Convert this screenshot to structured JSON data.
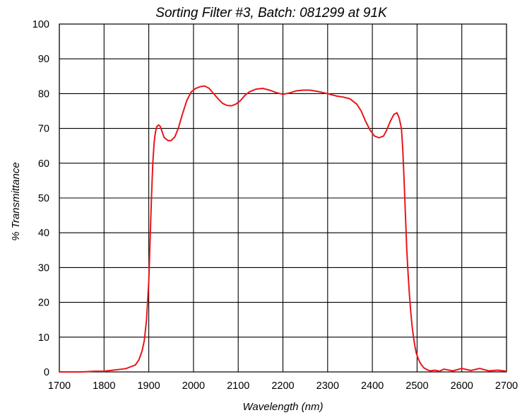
{
  "chart_data": {
    "type": "line",
    "title": "Sorting Filter #3, Batch: 081299  at 91K",
    "xlabel": "Wavelength (nm)",
    "ylabel": "% Transmittance",
    "xlim": [
      1700,
      2700
    ],
    "ylim": [
      0,
      100
    ],
    "x_ticks": [
      "1700",
      "1800",
      "1900",
      "2000",
      "2100",
      "2200",
      "2300",
      "2400",
      "2500",
      "2600",
      "2700"
    ],
    "y_ticks": [
      "0",
      "10",
      "20",
      "30",
      "40",
      "50",
      "60",
      "70",
      "80",
      "90",
      "100"
    ],
    "grid": true,
    "line_color": "#e8161b",
    "series": [
      {
        "x": [
          1700,
          1750,
          1780,
          1800,
          1820,
          1840,
          1850,
          1860,
          1870,
          1878,
          1885,
          1890,
          1895,
          1900,
          1903,
          1906,
          1909,
          1912,
          1915,
          1918,
          1922,
          1926,
          1930,
          1934,
          1938,
          1943,
          1950,
          1958,
          1966,
          1975,
          1985,
          1995,
          2005,
          2015,
          2025,
          2035,
          2045,
          2055,
          2065,
          2075,
          2085,
          2095,
          2105,
          2115,
          2125,
          2140,
          2155,
          2170,
          2185,
          2200,
          2215,
          2230,
          2245,
          2260,
          2275,
          2290,
          2305,
          2320,
          2335,
          2350,
          2365,
          2375,
          2385,
          2395,
          2405,
          2415,
          2425,
          2432,
          2440,
          2448,
          2455,
          2460,
          2465,
          2468,
          2471,
          2474,
          2477,
          2480,
          2483,
          2486,
          2489,
          2492,
          2495,
          2498,
          2502,
          2506,
          2510,
          2515,
          2520,
          2525,
          2530,
          2540,
          2550,
          2560,
          2580,
          2600,
          2620,
          2640,
          2660,
          2680,
          2700
        ],
        "y": [
          0,
          0,
          0.2,
          0.2,
          0.5,
          0.8,
          1,
          1.5,
          2,
          3.5,
          6,
          9,
          15,
          26,
          38,
          50,
          60,
          66,
          69,
          70.5,
          71,
          70.5,
          69,
          67.5,
          67,
          66.5,
          66.5,
          67.5,
          70,
          74,
          78,
          80.5,
          81.5,
          82,
          82.2,
          81.5,
          80,
          78.5,
          77.2,
          76.6,
          76.5,
          77,
          78,
          79.5,
          80.5,
          81.3,
          81.5,
          81,
          80.3,
          79.8,
          80.2,
          80.8,
          81,
          81,
          80.7,
          80.3,
          79.8,
          79.3,
          79,
          78.5,
          77,
          75,
          72,
          69.5,
          67.8,
          67.3,
          67.8,
          69.5,
          72,
          74,
          74.5,
          73,
          70,
          64,
          55,
          45,
          35,
          28,
          22,
          17,
          13,
          10,
          7.5,
          5.5,
          4,
          2.8,
          2,
          1.2,
          0.8,
          0.5,
          0.3,
          0.5,
          0.2,
          0.8,
          0.3,
          1,
          0.4,
          1,
          0.3,
          0.5,
          0.2
        ]
      }
    ]
  }
}
